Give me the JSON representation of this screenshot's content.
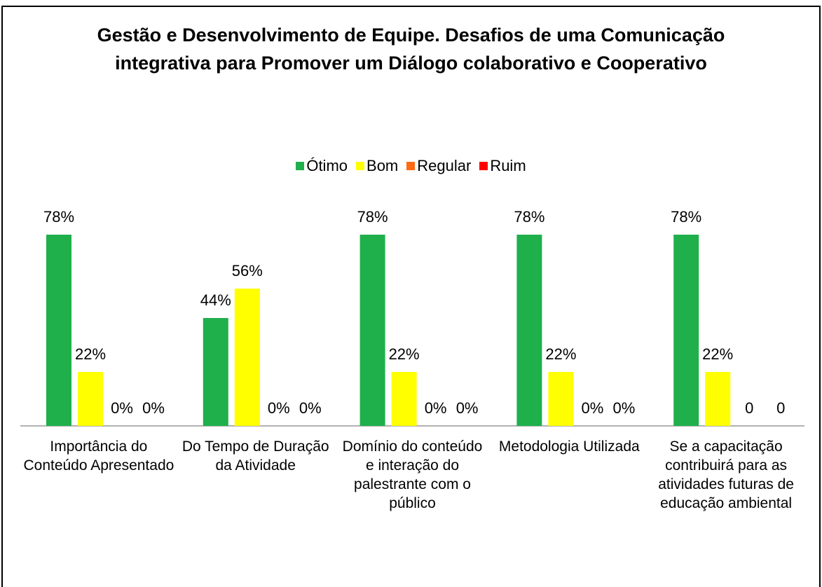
{
  "chart_data": {
    "type": "bar",
    "title": "Gestão e Desenvolvimento de Equipe. Desafios de uma Comunicação integrativa para Promover um Diálogo colaborativo e Cooperativo",
    "categories": [
      "Importância do Conteúdo Apresentado",
      "Do Tempo de Duração da Atividade",
      "Domínio do conteúdo e interação do palestrante com o público",
      "Metodologia Utilizada",
      "Se a capacitação contribuirá para as atividades futuras de educação ambiental"
    ],
    "series": [
      {
        "name": "Ótimo",
        "color": "#1fb04c",
        "values": [
          78,
          44,
          78,
          78,
          78
        ],
        "value_labels": [
          "78%",
          "44%",
          "78%",
          "78%",
          "78%"
        ]
      },
      {
        "name": "Bom",
        "color": "#ffff00",
        "values": [
          22,
          56,
          22,
          22,
          22
        ],
        "value_labels": [
          "22%",
          "56%",
          "22%",
          "22%",
          "22%"
        ]
      },
      {
        "name": "Regular",
        "color": "#ff6a13",
        "values": [
          0,
          0,
          0,
          0,
          0
        ],
        "value_labels": [
          "0%",
          "0%",
          "0%",
          "0%",
          "0"
        ]
      },
      {
        "name": "Ruim",
        "color": "#ff0000",
        "values": [
          0,
          0,
          0,
          0,
          0
        ],
        "value_labels": [
          "0%",
          "0%",
          "0%",
          "0%",
          "0"
        ]
      }
    ],
    "legend": "top"
  }
}
